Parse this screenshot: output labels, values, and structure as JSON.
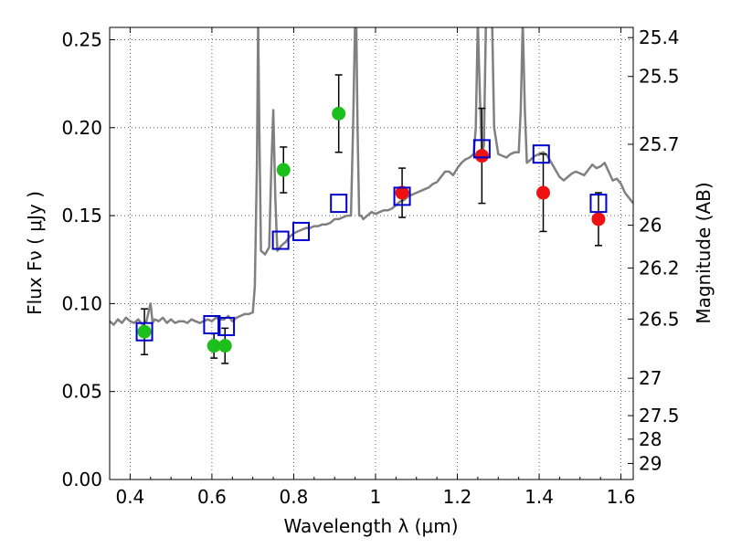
{
  "chart_data": {
    "type": "scatter",
    "xlabel": "Wavelength  λ (μm)",
    "ylabel": "Flux  Fν  ( μJy )",
    "y2label": "Magnitude (AB)",
    "xlim": [
      0.35,
      1.63
    ],
    "ylim": [
      0.0,
      0.257
    ],
    "grid": true,
    "x_ticks": [
      0.4,
      0.6,
      0.8,
      1,
      1.2,
      1.4,
      1.6
    ],
    "x_tick_labels": [
      "0.4",
      "0.6",
      "0.8",
      "1",
      "1.2",
      "1.4",
      "1.6"
    ],
    "y_ticks": [
      0.0,
      0.05,
      0.1,
      0.15,
      0.2,
      0.25
    ],
    "y_tick_labels": [
      "0.00",
      "0.05",
      "0.10",
      "0.15",
      "0.20",
      "0.25"
    ],
    "mag_ticks": [
      25.4,
      25.5,
      25.7,
      26,
      26.2,
      26.5,
      27,
      27.5,
      28,
      29
    ],
    "mag_tick_labels": [
      "25.4",
      "25.5",
      "25.7",
      "26",
      "26.2",
      "26.5",
      "27",
      "27.5",
      "28",
      "29"
    ],
    "colors": {
      "spectrum": "#808080",
      "green": "#1dbf1d",
      "red": "#ee1111",
      "model_box": "#0000cc",
      "errorbar": "#000000"
    },
    "spectrum": {
      "name": "model spectrum",
      "x": [
        0.35,
        0.36,
        0.37,
        0.38,
        0.39,
        0.4,
        0.41,
        0.42,
        0.43,
        0.44,
        0.445,
        0.45,
        0.455,
        0.46,
        0.47,
        0.48,
        0.49,
        0.5,
        0.51,
        0.52,
        0.53,
        0.54,
        0.55,
        0.56,
        0.57,
        0.58,
        0.59,
        0.6,
        0.61,
        0.62,
        0.63,
        0.64,
        0.65,
        0.66,
        0.67,
        0.68,
        0.69,
        0.7,
        0.705,
        0.71,
        0.713,
        0.716,
        0.72,
        0.73,
        0.74,
        0.745,
        0.75,
        0.755,
        0.76,
        0.77,
        0.78,
        0.79,
        0.8,
        0.81,
        0.82,
        0.83,
        0.84,
        0.85,
        0.86,
        0.87,
        0.88,
        0.89,
        0.9,
        0.91,
        0.92,
        0.93,
        0.94,
        0.945,
        0.95,
        0.953,
        0.956,
        0.96,
        0.965,
        0.97,
        0.98,
        0.99,
        1.0,
        1.01,
        1.02,
        1.03,
        1.04,
        1.05,
        1.06,
        1.07,
        1.08,
        1.09,
        1.1,
        1.11,
        1.12,
        1.13,
        1.14,
        1.15,
        1.16,
        1.17,
        1.18,
        1.19,
        1.2,
        1.21,
        1.22,
        1.23,
        1.24,
        1.245,
        1.25,
        1.255,
        1.26,
        1.265,
        1.27,
        1.275,
        1.28,
        1.285,
        1.29,
        1.3,
        1.31,
        1.32,
        1.33,
        1.34,
        1.35,
        1.355,
        1.36,
        1.365,
        1.37,
        1.38,
        1.39,
        1.4,
        1.41,
        1.42,
        1.43,
        1.44,
        1.45,
        1.46,
        1.47,
        1.48,
        1.49,
        1.5,
        1.51,
        1.52,
        1.53,
        1.54,
        1.55,
        1.56,
        1.57,
        1.58,
        1.59,
        1.6,
        1.61,
        1.62,
        1.63
      ],
      "y": [
        0.09,
        0.088,
        0.091,
        0.089,
        0.092,
        0.09,
        0.089,
        0.091,
        0.088,
        0.09,
        0.095,
        0.1,
        0.089,
        0.091,
        0.09,
        0.092,
        0.089,
        0.091,
        0.089,
        0.09,
        0.09,
        0.089,
        0.091,
        0.09,
        0.089,
        0.09,
        0.091,
        0.09,
        0.092,
        0.091,
        0.091,
        0.093,
        0.09,
        0.092,
        0.093,
        0.094,
        0.094,
        0.095,
        0.11,
        0.18,
        0.26,
        0.2,
        0.13,
        0.128,
        0.132,
        0.175,
        0.21,
        0.16,
        0.13,
        0.133,
        0.135,
        0.138,
        0.14,
        0.141,
        0.142,
        0.143,
        0.143,
        0.144,
        0.144,
        0.145,
        0.145,
        0.146,
        0.148,
        0.148,
        0.149,
        0.15,
        0.15,
        0.2,
        0.26,
        0.26,
        0.2,
        0.15,
        0.15,
        0.148,
        0.15,
        0.152,
        0.151,
        0.152,
        0.153,
        0.153,
        0.154,
        0.156,
        0.158,
        0.159,
        0.161,
        0.162,
        0.163,
        0.164,
        0.165,
        0.166,
        0.168,
        0.169,
        0.172,
        0.175,
        0.175,
        0.173,
        0.177,
        0.18,
        0.182,
        0.183,
        0.185,
        0.2,
        0.26,
        0.22,
        0.185,
        0.19,
        0.26,
        0.26,
        0.26,
        0.26,
        0.2,
        0.185,
        0.184,
        0.183,
        0.185,
        0.186,
        0.186,
        0.21,
        0.26,
        0.21,
        0.18,
        0.182,
        0.184,
        0.185,
        0.186,
        0.184,
        0.18,
        0.176,
        0.172,
        0.17,
        0.172,
        0.174,
        0.175,
        0.174,
        0.173,
        0.176,
        0.179,
        0.177,
        0.178,
        0.18,
        0.175,
        0.17,
        0.171,
        0.168,
        0.163,
        0.16,
        0.157
      ]
    },
    "green_points": [
      {
        "x": 0.435,
        "y": 0.084,
        "err": 0.013
      },
      {
        "x": 0.605,
        "y": 0.076,
        "err": 0.007
      },
      {
        "x": 0.632,
        "y": 0.076,
        "err": 0.01
      },
      {
        "x": 0.775,
        "y": 0.176,
        "err": 0.013
      },
      {
        "x": 0.91,
        "y": 0.208,
        "err": 0.022
      }
    ],
    "red_points": [
      {
        "x": 1.065,
        "y": 0.163,
        "err": 0.014
      },
      {
        "x": 1.26,
        "y": 0.184,
        "err": 0.027
      },
      {
        "x": 1.41,
        "y": 0.163,
        "err": 0.022
      },
      {
        "x": 1.545,
        "y": 0.148,
        "err": 0.015
      }
    ],
    "model_boxes": [
      {
        "x": 0.435,
        "y": 0.084
      },
      {
        "x": 0.6,
        "y": 0.088
      },
      {
        "x": 0.635,
        "y": 0.087
      },
      {
        "x": 0.768,
        "y": 0.136
      },
      {
        "x": 0.818,
        "y": 0.141
      },
      {
        "x": 0.91,
        "y": 0.157
      },
      {
        "x": 1.065,
        "y": 0.161
      },
      {
        "x": 1.26,
        "y": 0.188
      },
      {
        "x": 1.405,
        "y": 0.185
      },
      {
        "x": 1.545,
        "y": 0.157
      }
    ]
  }
}
